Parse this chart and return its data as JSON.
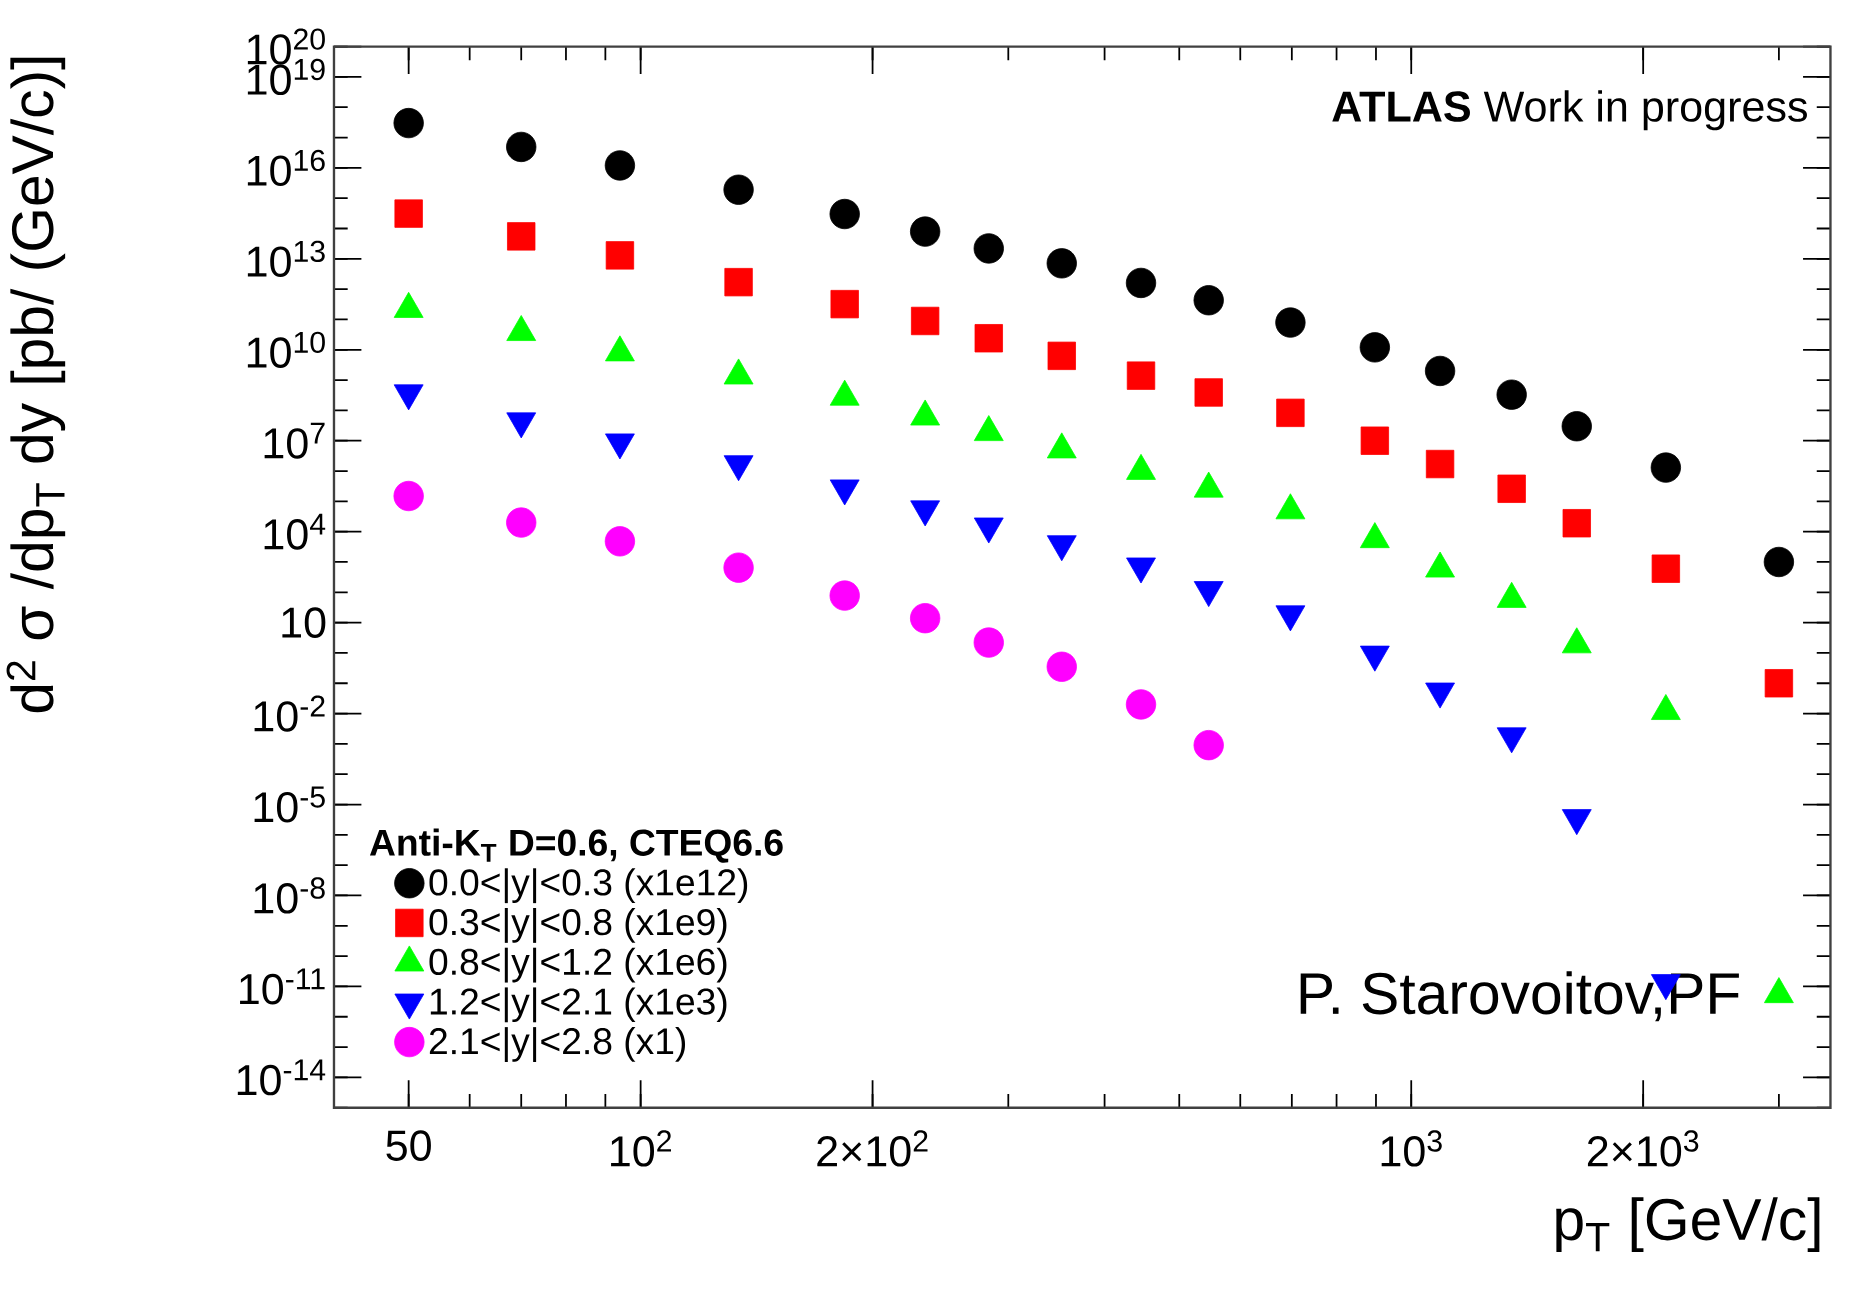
{
  "chart_data": {
    "type": "scatter",
    "xlabel": "p$_{T}$ [GeV/c]",
    "ylabel": "d$^{2}$ σ /dp$_{T}$ dy [pb/ (GeV/c)]",
    "legend_title": "Anti-K$_{T}$ D=0.6, CTEQ6.6",
    "annotations": [
      "**ATLAS** Work in progress",
      "P. Starovoitov,PF"
    ],
    "x": [
      50,
      70,
      94,
      134,
      184,
      234,
      283,
      352,
      446,
      546,
      697,
      897,
      1090,
      1350,
      1640,
      2140,
      3000
    ],
    "series": [
      {
        "name": "0.0<|y|<0.3 (x1e12)",
        "color": "#000000",
        "marker": "circle",
        "values": [
          3e+17,
          4.9e+16,
          1.2e+16,
          1900000000000000.0,
          300000000000000.0,
          79000000000000.0,
          22000000000000.0,
          7100000000000.0,
          1600000000000.0,
          430000000000.0,
          79000000000.0,
          12000000000.0,
          2000000000.0,
          330000000.0,
          30000000.0,
          1300000.0,
          1000.0
        ]
      },
      {
        "name": "0.3<|y|<0.8 (x1e9)",
        "color": "#ff0000",
        "marker": "square",
        "values": [
          310000000000000.0,
          55000000000000.0,
          13000000000000.0,
          1700000000000.0,
          320000000000.0,
          89000000000.0,
          24000000000.0,
          6300000000.0,
          1400000000.0,
          390000000.0,
          83000000.0,
          10000000.0,
          1700000.0,
          260000.0,
          19000.0,
          600.0,
          0.1
        ]
      },
      {
        "name": "0.8<|y|<1.2 (x1e6)",
        "color": "#00ff00",
        "marker": "triangle",
        "values": [
          220000000000.0,
          38000000000.0,
          8100000000.0,
          1400000000.0,
          280000000.0,
          62000000.0,
          19000000.0,
          5100000.0,
          1000000.0,
          260000.0,
          50000.0,
          5600.0,
          600.0,
          60,
          1.9,
          0.012,
          5.5e-12
        ]
      },
      {
        "name": "1.2<|y|<2.1 (x1e3)",
        "color": "#0000ff",
        "marker": "triangle-down",
        "values": [
          370000000.0,
          44000000.0,
          8900000.0,
          1700000.0,
          270000.0,
          55000.0,
          15000.0,
          3900.0,
          720.0,
          120.0,
          19,
          0.89,
          0.054,
          0.0018,
          3.6e-06,
          1.3e-11,
          null
        ]
      },
      {
        "name": "2.1<|y|<2.8 (x1)",
        "color": "#ff00ff",
        "marker": "circle",
        "values": [
          150000.0,
          20000.0,
          4800.0,
          650.0,
          78,
          14,
          2.2,
          0.35,
          0.02,
          0.00091,
          null,
          null,
          null,
          null,
          null,
          null,
          null
        ]
      }
    ],
    "log": "xy",
    "xlim": [
      40,
      3500
    ],
    "ylim": [
      1e-15,
      1e+20
    ],
    "xticks": [
      50,
      {
        "value": 100,
        "label": "10$^{2}$"
      },
      {
        "value": 200,
        "label": "2×10$^{2}$"
      },
      {
        "value": 1000,
        "label": "10$^{3}$"
      },
      {
        "value": 2000,
        "label": "2×10$^{3}$"
      }
    ],
    "yticks": [
      {
        "value": 1e-14,
        "label": "10$^{-14}$"
      },
      {
        "value": 1e-11,
        "label": "10$^{-11}$"
      },
      {
        "value": 1e-08,
        "label": "10$^{-8}$"
      },
      {
        "value": 1e-05,
        "label": "10$^{-5}$"
      },
      {
        "value": 0.01,
        "label": "10$^{-2}$"
      },
      10,
      {
        "value": 10000.0,
        "label": "10$^{4}$"
      },
      {
        "value": 10000000.0,
        "label": "10$^{7}$"
      },
      {
        "value": 10000000000.0,
        "label": "10$^{10}$"
      },
      {
        "value": 10000000000000.0,
        "label": "10$^{13}$"
      },
      {
        "value": 1e+16,
        "label": "10$^{16}$"
      },
      {
        "value": 1e+19,
        "label": "10$^{19}$"
      },
      {
        "value": 1e+20,
        "label": "10$^{20}$"
      }
    ],
    "grid": false,
    "legend": "bottom left"
  }
}
